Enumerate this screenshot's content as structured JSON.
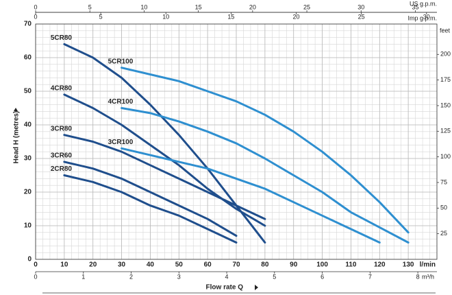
{
  "chart_data": {
    "type": "line",
    "y_label": "Head H (metres)",
    "x_label": "Flow rate Q",
    "x_unit": "l/min",
    "xlim": [
      0,
      140
    ],
    "xticks": [
      0,
      10,
      20,
      30,
      40,
      50,
      60,
      70,
      80,
      90,
      100,
      110,
      120,
      130
    ],
    "ylim": [
      0,
      70
    ],
    "yticks": [
      0,
      10,
      20,
      30,
      40,
      50,
      60,
      70
    ],
    "grid": true,
    "secondary_axes": [
      {
        "label": "US g.p.m.",
        "side": "top",
        "lim": [
          0,
          36.99
        ],
        "ticks": [
          0,
          5,
          10,
          15,
          20,
          25,
          30,
          35
        ]
      },
      {
        "label": "Imp g.p.m.",
        "side": "top-inner",
        "lim": [
          0,
          30.8
        ],
        "ticks": [
          0,
          5,
          10,
          15,
          20,
          25,
          30
        ]
      },
      {
        "label": "m³/h",
        "side": "bottom",
        "lim": [
          0,
          8.4
        ],
        "ticks": [
          0,
          1,
          2,
          3,
          4,
          5,
          6,
          7,
          8
        ]
      },
      {
        "label": "feet",
        "side": "right",
        "lim": [
          0,
          229.66
        ],
        "ticks": [
          25,
          50,
          75,
          100,
          125,
          150,
          175,
          200
        ]
      }
    ],
    "series": [
      {
        "name": "5CR80",
        "color": "#1f4e8c",
        "x": [
          10,
          20,
          30,
          40,
          50,
          60,
          70,
          80
        ],
        "values": [
          64,
          60,
          54,
          46,
          37,
          27,
          16,
          5
        ]
      },
      {
        "name": "4CR80",
        "color": "#1f4e8c",
        "x": [
          10,
          20,
          30,
          40,
          50,
          60,
          70,
          80
        ],
        "values": [
          49,
          45,
          40,
          34,
          28,
          21,
          15,
          10
        ]
      },
      {
        "name": "3CR80",
        "color": "#1f4e8c",
        "x": [
          10,
          20,
          30,
          40,
          50,
          60,
          70,
          80
        ],
        "values": [
          37,
          35,
          32,
          28,
          24,
          20,
          16,
          12
        ]
      },
      {
        "name": "3CR60",
        "color": "#1f4e8c",
        "x": [
          10,
          20,
          30,
          40,
          50,
          60,
          70
        ],
        "values": [
          29,
          27,
          24,
          20,
          16,
          12,
          7
        ]
      },
      {
        "name": "2CR80",
        "color": "#1f4e8c",
        "x": [
          10,
          20,
          30,
          40,
          50,
          60,
          70
        ],
        "values": [
          25,
          23,
          20,
          16,
          13,
          9,
          5
        ]
      },
      {
        "name": "5CR100",
        "color": "#2e8fd0",
        "x": [
          30,
          40,
          50,
          60,
          70,
          80,
          90,
          100,
          110,
          120,
          130
        ],
        "values": [
          57,
          55,
          53,
          50,
          47,
          43,
          38,
          32,
          25,
          17,
          8
        ]
      },
      {
        "name": "4CR100",
        "color": "#2e8fd0",
        "x": [
          30,
          40,
          50,
          60,
          70,
          80,
          90,
          100,
          110,
          120,
          130
        ],
        "values": [
          45,
          43.5,
          41,
          38,
          34.5,
          30,
          25,
          20,
          14,
          9.5,
          5
        ]
      },
      {
        "name": "3CR100",
        "color": "#2e8fd0",
        "x": [
          30,
          40,
          50,
          60,
          70,
          80,
          90,
          100,
          110,
          120
        ],
        "values": [
          33,
          31,
          29,
          27,
          24,
          21,
          17,
          13,
          9,
          5
        ]
      }
    ]
  }
}
